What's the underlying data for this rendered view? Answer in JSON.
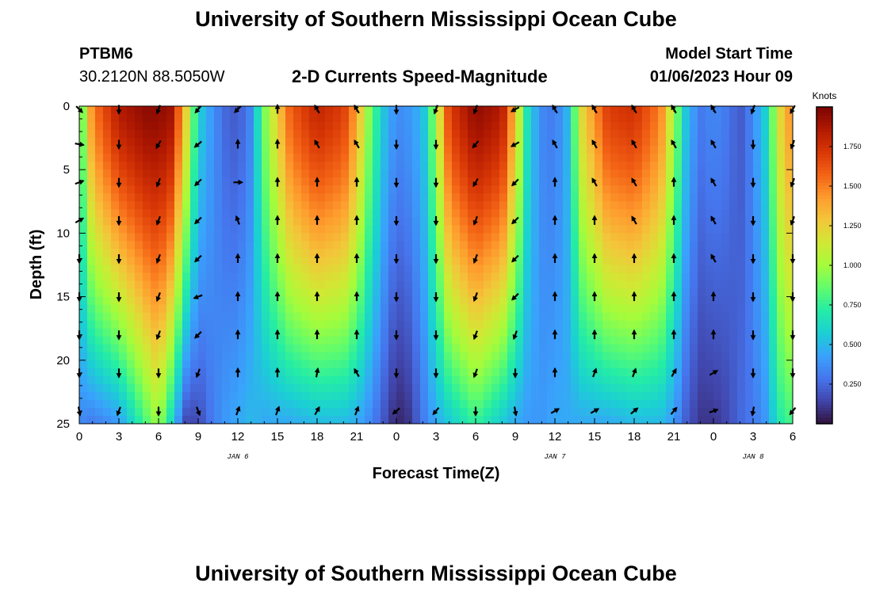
{
  "header": {
    "title": "University of Southern Mississippi Ocean Cube",
    "station_id": "PTBM6",
    "station_coords": "30.2120N  88.5050W",
    "subtitle": "2-D Currents Speed-Magnitude",
    "model_start_label": "Model Start Time",
    "model_start_value": "01/06/2023 Hour 09"
  },
  "footer": {
    "title": "University of Southern Mississippi Ocean Cube"
  },
  "colors": {
    "scale": [
      "#30123b",
      "#4145ab",
      "#4675ed",
      "#39a2fc",
      "#1bcfd4",
      "#24eca6",
      "#61fc6c",
      "#a4fc3b",
      "#d1e834",
      "#f3c63a",
      "#fe9b2d",
      "#f36315",
      "#d93806",
      "#b11901",
      "#7a0402"
    ],
    "arrow": "#000000"
  },
  "chart_data": {
    "type": "heatmap",
    "title": "2-D Currents Speed-Magnitude",
    "xlabel": "Forecast Time(Z)",
    "ylabel": "Depth (ft)",
    "x_tick_labels": [
      "0",
      "3",
      "6",
      "9",
      "12",
      "15",
      "18",
      "21",
      "0",
      "3",
      "6",
      "9",
      "12",
      "15",
      "18",
      "21",
      "0",
      "3",
      "6"
    ],
    "x_range_hours": [
      0,
      54
    ],
    "date_labels": [
      {
        "text": "JAN 6",
        "hour": 12
      },
      {
        "text": "JAN 7",
        "hour": 36
      },
      {
        "text": "JAN 8",
        "hour": 51
      }
    ],
    "y_ticks": [
      0,
      5,
      10,
      15,
      20,
      25
    ],
    "y_range_ft": [
      0,
      25
    ],
    "colorbar": {
      "label": "Knots",
      "range": [
        0.0,
        2.0
      ],
      "ticks": [
        "0.250",
        "0.500",
        "0.750",
        "1.000",
        "1.250",
        "1.500",
        "1.750"
      ],
      "tick_values": [
        0.25,
        0.5,
        0.75,
        1.0,
        1.25,
        1.5,
        1.75
      ]
    },
    "speed_columns": [
      {
        "hour": 0,
        "surface": 0.7,
        "bottom": 0.35
      },
      {
        "hour": 1,
        "surface": 1.5,
        "bottom": 0.3
      },
      {
        "hour": 3,
        "surface": 1.85,
        "bottom": 0.4
      },
      {
        "hour": 5,
        "surface": 1.95,
        "bottom": 0.8
      },
      {
        "hour": 6,
        "surface": 1.95,
        "bottom": 1.0
      },
      {
        "hour": 7,
        "surface": 1.9,
        "bottom": 0.6
      },
      {
        "hour": 8,
        "surface": 1.3,
        "bottom": 0.15
      },
      {
        "hour": 9,
        "surface": 0.6,
        "bottom": 0.15
      },
      {
        "hour": 10,
        "surface": 0.4,
        "bottom": 0.3
      },
      {
        "hour": 11,
        "surface": 0.25,
        "bottom": 0.4
      },
      {
        "hour": 12,
        "surface": 0.2,
        "bottom": 0.45
      },
      {
        "hour": 13,
        "surface": 0.35,
        "bottom": 0.5
      },
      {
        "hour": 14,
        "surface": 0.9,
        "bottom": 0.45
      },
      {
        "hour": 16,
        "surface": 1.6,
        "bottom": 0.45
      },
      {
        "hour": 18,
        "surface": 1.8,
        "bottom": 0.5
      },
      {
        "hour": 20,
        "surface": 1.7,
        "bottom": 0.5
      },
      {
        "hour": 21,
        "surface": 1.4,
        "bottom": 0.45
      },
      {
        "hour": 22,
        "surface": 0.9,
        "bottom": 0.35
      },
      {
        "hour": 23,
        "surface": 0.55,
        "bottom": 0.2
      },
      {
        "hour": 24,
        "surface": 0.35,
        "bottom": 0.05
      },
      {
        "hour": 25,
        "surface": 0.4,
        "bottom": 0.1
      },
      {
        "hour": 26,
        "surface": 0.5,
        "bottom": 0.3
      },
      {
        "hour": 27,
        "surface": 1.0,
        "bottom": 0.45
      },
      {
        "hour": 28,
        "surface": 1.7,
        "bottom": 0.55
      },
      {
        "hour": 30,
        "surface": 1.95,
        "bottom": 0.75
      },
      {
        "hour": 32,
        "surface": 1.85,
        "bottom": 0.55
      },
      {
        "hour": 33,
        "surface": 1.3,
        "bottom": 0.45
      },
      {
        "hour": 34,
        "surface": 0.6,
        "bottom": 0.4
      },
      {
        "hour": 35,
        "surface": 0.35,
        "bottom": 0.4
      },
      {
        "hour": 36,
        "surface": 0.3,
        "bottom": 0.45
      },
      {
        "hour": 37,
        "surface": 0.5,
        "bottom": 0.45
      },
      {
        "hour": 38,
        "surface": 1.2,
        "bottom": 0.45
      },
      {
        "hour": 40,
        "surface": 1.7,
        "bottom": 0.45
      },
      {
        "hour": 42,
        "surface": 1.75,
        "bottom": 0.5
      },
      {
        "hour": 44,
        "surface": 1.5,
        "bottom": 0.5
      },
      {
        "hour": 45,
        "surface": 1.0,
        "bottom": 0.4
      },
      {
        "hour": 46,
        "surface": 0.5,
        "bottom": 0.2
      },
      {
        "hour": 47,
        "surface": 0.3,
        "bottom": 0.1
      },
      {
        "hour": 48,
        "surface": 0.35,
        "bottom": 0.1
      },
      {
        "hour": 49,
        "surface": 0.3,
        "bottom": 0.15
      },
      {
        "hour": 50,
        "surface": 0.2,
        "bottom": 0.25
      },
      {
        "hour": 51,
        "surface": 0.35,
        "bottom": 0.3
      },
      {
        "hour": 52,
        "surface": 0.6,
        "bottom": 0.4
      },
      {
        "hour": 53,
        "surface": 1.2,
        "bottom": 0.7
      },
      {
        "hour": 54,
        "surface": 1.5,
        "bottom": 0.8
      }
    ],
    "arrow_depths_ft": [
      0,
      3,
      6,
      9,
      12,
      15,
      18,
      21,
      24
    ],
    "arrow_columns": [
      {
        "hour": 0,
        "directions_deg": [
          135,
          100,
          70,
          60,
          180,
          180,
          180,
          180,
          170
        ]
      },
      {
        "hour": 3,
        "directions_deg": [
          180,
          180,
          180,
          180,
          180,
          180,
          180,
          180,
          200
        ]
      },
      {
        "hour": 6,
        "directions_deg": [
          200,
          210,
          200,
          200,
          200,
          200,
          200,
          180,
          180
        ]
      },
      {
        "hour": 9,
        "directions_deg": [
          220,
          230,
          225,
          225,
          225,
          250,
          225,
          200,
          160
        ]
      },
      {
        "hour": 12,
        "directions_deg": [
          225,
          360,
          90,
          340,
          0,
          0,
          0,
          0,
          20
        ]
      },
      {
        "hour": 15,
        "directions_deg": [
          0,
          0,
          0,
          0,
          0,
          0,
          0,
          0,
          20
        ]
      },
      {
        "hour": 18,
        "directions_deg": [
          330,
          330,
          0,
          0,
          0,
          0,
          0,
          10,
          30
        ]
      },
      {
        "hour": 21,
        "directions_deg": [
          330,
          330,
          0,
          0,
          0,
          0,
          0,
          330,
          20
        ]
      },
      {
        "hour": 24,
        "directions_deg": [
          180,
          180,
          180,
          180,
          180,
          180,
          180,
          180,
          230
        ]
      },
      {
        "hour": 27,
        "directions_deg": [
          200,
          180,
          180,
          180,
          180,
          180,
          180,
          180,
          220
        ]
      },
      {
        "hour": 30,
        "directions_deg": [
          200,
          220,
          210,
          200,
          200,
          200,
          200,
          200,
          180
        ]
      },
      {
        "hour": 33,
        "directions_deg": [
          240,
          240,
          225,
          225,
          225,
          225,
          200,
          180,
          170
        ]
      },
      {
        "hour": 36,
        "directions_deg": [
          330,
          330,
          0,
          0,
          0,
          0,
          0,
          0,
          60
        ]
      },
      {
        "hour": 39,
        "directions_deg": [
          330,
          330,
          330,
          0,
          0,
          0,
          0,
          20,
          60
        ]
      },
      {
        "hour": 42,
        "directions_deg": [
          330,
          330,
          330,
          330,
          0,
          0,
          0,
          20,
          50
        ]
      },
      {
        "hour": 45,
        "directions_deg": [
          330,
          330,
          0,
          0,
          0,
          0,
          0,
          30,
          40
        ]
      },
      {
        "hour": 48,
        "directions_deg": [
          330,
          330,
          330,
          330,
          330,
          0,
          0,
          60,
          70
        ]
      },
      {
        "hour": 51,
        "directions_deg": [
          200,
          180,
          180,
          180,
          180,
          180,
          180,
          180,
          190
        ]
      },
      {
        "hour": 54,
        "directions_deg": [
          210,
          200,
          200,
          200,
          180,
          180,
          180,
          180,
          220
        ]
      }
    ]
  }
}
